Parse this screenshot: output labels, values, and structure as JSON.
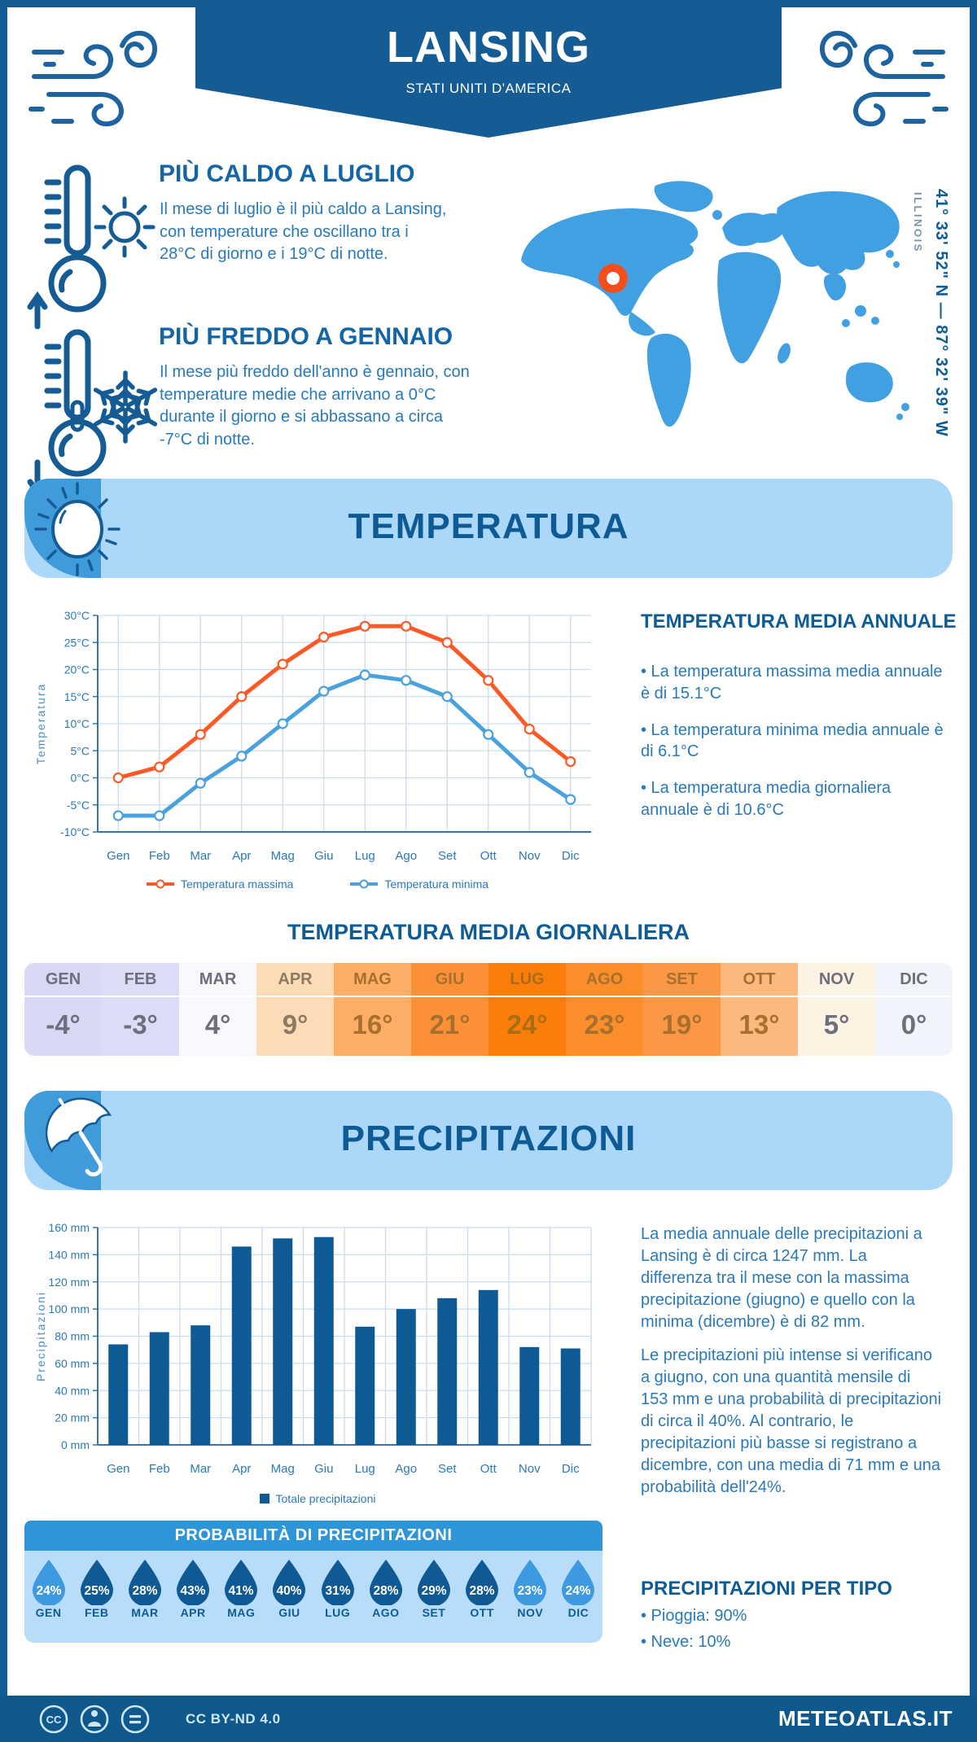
{
  "header": {
    "title": "LANSING",
    "subtitle": "STATI UNITI D'AMERICA"
  },
  "highlights": {
    "warm": {
      "title": "PIÙ CALDO A LUGLIO",
      "text": "Il mese di luglio è il più caldo a Lansing, con temperature che oscillano tra i 28°C di giorno e i 19°C di notte."
    },
    "cold": {
      "title": "PIÙ FREDDO A GENNAIO",
      "text": "Il mese più freddo dell'anno è gennaio, con temperature medie che arrivano a 0°C durante il giorno e si abbassano a circa -7°C di notte."
    }
  },
  "map": {
    "region_label": "ILLINOIS",
    "coordinates": "41° 33' 52\" N — 87° 32' 39\" W",
    "land_color": "#41a0e2",
    "marker_color": "#f44e1a"
  },
  "temperature_section": {
    "banner_title": "TEMPERATURA",
    "annual_heading": "TEMPERATURA MEDIA ANNUALE",
    "annual_bullets": [
      "• La temperatura massima media annuale è di 15.1°C",
      "• La temperatura minima media annuale è di 6.1°C",
      "• La temperatura media giornaliera annuale è di 10.6°C"
    ],
    "daily_heading": "TEMPERATURA MEDIA GIORNALIERA"
  },
  "precipitation_section": {
    "banner_title": "PRECIPITAZIONI",
    "paragraphs": [
      "La media annuale delle precipitazioni a Lansing è di circa 1247 mm. La differenza tra il mese con la massima precipitazione (giugno) e quello con la minima (dicembre) è di 82 mm.",
      "Le precipitazioni più intense si verificano a giugno, con una quantità mensile di 153 mm e una probabilità di precipitazioni di circa il 40%. Al contrario, le precipitazioni più basse si registrano a dicembre, con una media di 71 mm e una probabilità dell'24%."
    ],
    "per_type_heading": "PRECIPITAZIONI PER TIPO",
    "per_type_bullets": [
      "• Pioggia: 90%",
      "• Neve: 10%"
    ]
  },
  "probability": {
    "heading": "PROBABILITÀ DI PRECIPITAZIONI",
    "drop_dark": "#0f5a94",
    "drop_light": "#3d9ae0",
    "months": [
      {
        "label": "GEN",
        "value": "24%",
        "tone": "light"
      },
      {
        "label": "FEB",
        "value": "25%",
        "tone": "dark"
      },
      {
        "label": "MAR",
        "value": "28%",
        "tone": "dark"
      },
      {
        "label": "APR",
        "value": "43%",
        "tone": "dark"
      },
      {
        "label": "MAG",
        "value": "41%",
        "tone": "dark"
      },
      {
        "label": "GIU",
        "value": "40%",
        "tone": "dark"
      },
      {
        "label": "LUG",
        "value": "31%",
        "tone": "dark"
      },
      {
        "label": "AGO",
        "value": "28%",
        "tone": "dark"
      },
      {
        "label": "SET",
        "value": "29%",
        "tone": "dark"
      },
      {
        "label": "OTT",
        "value": "28%",
        "tone": "dark"
      },
      {
        "label": "NOV",
        "value": "23%",
        "tone": "light"
      },
      {
        "label": "DIC",
        "value": "24%",
        "tone": "light"
      }
    ]
  },
  "chart_data": [
    {
      "type": "line",
      "categories": [
        "Gen",
        "Feb",
        "Mar",
        "Apr",
        "Mag",
        "Giu",
        "Lug",
        "Ago",
        "Set",
        "Ott",
        "Nov",
        "Dic"
      ],
      "series": [
        {
          "name": "Temperatura massima",
          "color": "#fb5a26",
          "values": [
            0,
            2,
            8,
            15,
            21,
            26,
            28,
            28,
            25,
            18,
            9,
            3
          ]
        },
        {
          "name": "Temperatura minima",
          "color": "#4ba1dc",
          "values": [
            -7,
            -7,
            -1,
            4,
            10,
            16,
            19,
            18,
            15,
            8,
            1,
            -4
          ]
        }
      ],
      "ylabel": "Temperatura",
      "ylim": [
        -10,
        30
      ],
      "ytick": 5,
      "yunit": "°C",
      "grid": true,
      "legend_position": "bottom"
    },
    {
      "type": "bar",
      "categories": [
        "Gen",
        "Feb",
        "Mar",
        "Apr",
        "Mag",
        "Giu",
        "Lug",
        "Ago",
        "Set",
        "Ott",
        "Nov",
        "Dic"
      ],
      "values": [
        74,
        83,
        88,
        146,
        152,
        153,
        87,
        100,
        108,
        114,
        72,
        71
      ],
      "bar_color": "#0d5a94",
      "ylabel": "Precipitazioni",
      "ylim": [
        0,
        160
      ],
      "ytick": 20,
      "yunit": " mm",
      "grid": true,
      "legend": "Totale precipitazioni"
    },
    {
      "type": "table",
      "title": "TEMPERATURA MEDIA GIORNALIERA",
      "categories": [
        "GEN",
        "FEB",
        "MAR",
        "APR",
        "MAG",
        "GIU",
        "LUG",
        "AGO",
        "SET",
        "OTT",
        "NOV",
        "DIC"
      ],
      "values": [
        "-4°",
        "-3°",
        "4°",
        "9°",
        "16°",
        "21°",
        "24°",
        "23°",
        "19°",
        "13°",
        "5°",
        "0°"
      ],
      "cell_colors": [
        "#d9d8f5",
        "#dddcf7",
        "#f8f8fd",
        "#fcdcb6",
        "#fcae66",
        "#fb9038",
        "#fb7e0a",
        "#fb8d2a",
        "#fb9744",
        "#fcb97e",
        "#fdf3e3",
        "#f2f4fb"
      ],
      "text_colors": [
        "#6e6e7c",
        "#6e6e7c",
        "#6e6e7c",
        "#8d7a62",
        "#a8702e",
        "#a8702e",
        "#ab6c15",
        "#a8702e",
        "#a8702e",
        "#a8702e",
        "#6e6e7c",
        "#6e6e7c"
      ]
    }
  ],
  "footer": {
    "license": "CC BY-ND 4.0",
    "site": "METEOATLAS.IT"
  }
}
